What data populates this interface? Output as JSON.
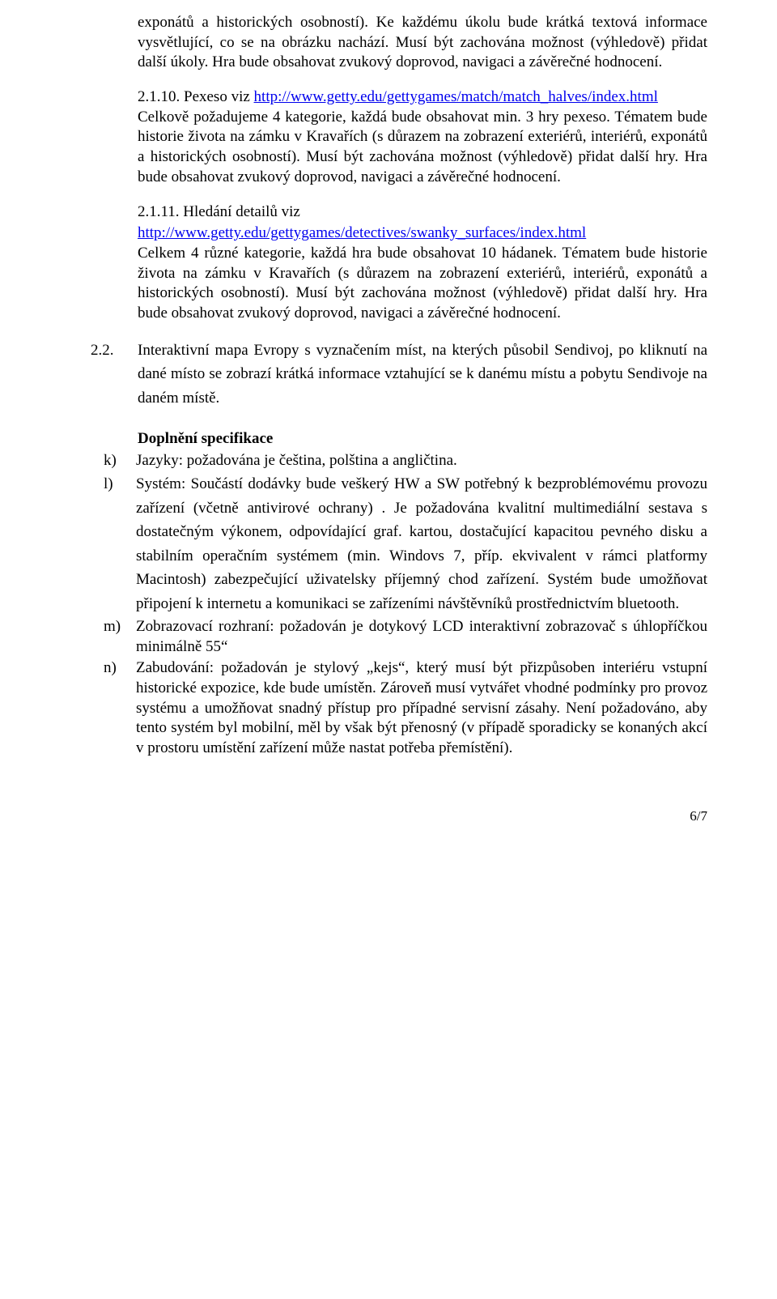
{
  "p1": "exponátů a historických osobností). Ke každému úkolu bude krátká textová informace vysvětlující, co se na obrázku nachází. Musí být zachována možnost (výhledově) přidat další úkoly. Hra bude obsahovat zvukový doprovod, navigaci a závěrečné hodnocení.",
  "p2_num": "2.1.10. ",
  "p2_lead": "Pexeso viz ",
  "p2_link": "http://www.getty.edu/gettygames/match/match_halves/index.html",
  "p2_body": "Celkově požadujeme 4 kategorie, každá bude obsahovat min. 3 hry pexeso. Tématem bude historie života na zámku v Kravařích  (s důrazem na zobrazení exteriérů, interiérů, exponátů a historických osobností). Musí být zachována možnost (výhledově) přidat další hry. Hra bude obsahovat zvukový doprovod, navigaci a závěrečné hodnocení.",
  "p3_num": "2.1.11. ",
  "p3_lead": "Hledání detailů viz",
  "p3_link": "http://www.getty.edu/gettygames/detectives/swanky_surfaces/index.html",
  "p3_body": "Celkem 4 různé kategorie, každá hra bude obsahovat 10 hádanek. Tématem bude historie života na zámku v Kravařích (s důrazem na zobrazení exteriérů, interiérů, exponátů a historických osobností). Musí být zachována možnost (výhledově) přidat další hry. Hra bude obsahovat zvukový doprovod, navigaci a závěrečné hodnocení.",
  "s22_label": "2.2.",
  "s22_body": "Interaktivní mapa Evropy s vyznačením míst, na kterých působil Sendivoj, po kliknutí na dané místo se zobrazí krátká informace vztahující se k danému místu a pobytu Sendivoje na daném místě.",
  "spec_title": "Doplnění specifikace",
  "k_label": "k)",
  "k_body": "Jazyky: požadována je čeština, polština a angličtina.",
  "l_label": "l)",
  "l_body": "Systém: Součástí dodávky bude veškerý HW a SW potřebný k bezproblémovému provozu zařízení (včetně antivirové ochrany) . Je požadována kvalitní multimediální sestava s dostatečným výkonem, odpovídající graf. kartou, dostačující kapacitou pevného disku a stabilním operačním systémem (min. Windovs 7, příp. ekvivalent v rámci platformy Macintosh) zabezpečující uživatelsky příjemný chod zařízení. Systém bude umožňovat připojení k internetu a komunikaci se zařízeními návštěvníků prostřednictvím bluetooth.",
  "m_label": "m)",
  "m_body": "Zobrazovací rozhraní: požadován je dotykový LCD interaktivní zobrazovač s úhlopříčkou minimálně 55“",
  "n_label": "n)",
  "n_body": "Zabudování: požadován je stylový „kejs“, který musí být přizpůsoben interiéru vstupní historické expozice, kde bude umístěn. Zároveň musí vytvářet vhodné podmínky pro provoz systému a umožňovat snadný přístup pro případné servisní zásahy. Není požadováno, aby tento systém byl mobilní, měl by však být přenosný (v případě sporadicky se konaných akcí v prostoru umístění zařízení může nastat potřeba přemístění).",
  "pagenum": "6/7"
}
